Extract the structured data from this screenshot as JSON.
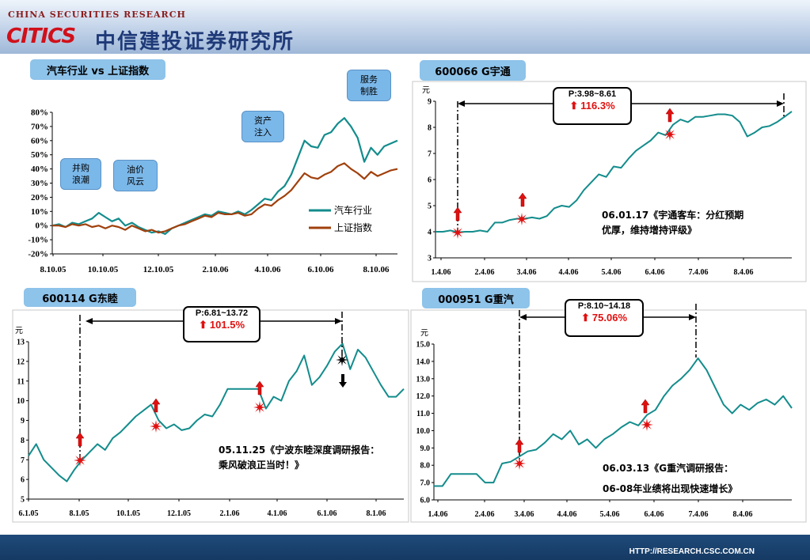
{
  "header": {
    "brand_en": "CHINA SECURITIES RESEARCH",
    "brand_logo": "CITICS",
    "brand_cn": "中信建投证券研究所"
  },
  "footer": {
    "url": "HTTP://RESEARCH.CSC.COM.CN"
  },
  "panels": {
    "p1": {
      "title": "汽车行业 vs 上证指数",
      "bubbles": [
        [
          "并购",
          "浪潮"
        ],
        [
          "油价",
          "风云"
        ],
        [
          "资产",
          "注入"
        ],
        [
          "服务",
          "制胜"
        ]
      ],
      "legend": [
        "汽车行业",
        "上证指数"
      ]
    },
    "p2": {
      "title": "600066  G宇通",
      "unit": "元",
      "box_p": "P:3.98~8.61",
      "box_pct": "116.3%",
      "note": [
        "06.01.17《宇通客车：分红预期",
        "优厚，维持增持评级》"
      ]
    },
    "p3": {
      "title": "600114  G东睦",
      "unit": "元",
      "box_p": "P:6.81~13.72",
      "box_pct": "101.5%",
      "note": [
        "05.11.25《宁波东睦深度调研报告：",
        "乘风破浪正当时！》"
      ]
    },
    "p4": {
      "title": "000951  G重汽",
      "unit": "元",
      "box_p": "P:8.10~14.18",
      "box_pct": "75.06%",
      "note": [
        "06.03.13《G重汽调研报告：",
        "06-08年业绩将出现快速增长》"
      ]
    }
  },
  "chart_data": [
    {
      "type": "line",
      "title": "汽车行业 vs 上证指数",
      "x_ticks": [
        "8.10.05",
        "10.10.05",
        "12.10.05",
        "2.10.06",
        "4.10.06",
        "6.10.06",
        "8.10.06"
      ],
      "y_ticks": [
        "80%",
        "70%",
        "60%",
        "50%",
        "40%",
        "30%",
        "20%",
        "10%",
        "0%",
        "-10%",
        "-20%"
      ],
      "ylim": [
        -20,
        80
      ],
      "legend_position": "center-right",
      "series": [
        {
          "name": "汽车行业",
          "color": "#138c8c",
          "values": [
            0,
            1,
            -1,
            2,
            1,
            3,
            5,
            9,
            6,
            3,
            5,
            0,
            2,
            -1,
            -3,
            -5,
            -4,
            -6,
            -2,
            0,
            2,
            4,
            6,
            8,
            7,
            10,
            9,
            8,
            10,
            8,
            11,
            15,
            19,
            18,
            24,
            28,
            36,
            48,
            60,
            56,
            55,
            64,
            66,
            72,
            76,
            70,
            62,
            45,
            55,
            50,
            56,
            58,
            60
          ]
        },
        {
          "name": "上证指数",
          "color": "#a0400c",
          "values": [
            0,
            0,
            -1,
            1,
            0,
            1,
            -1,
            0,
            -2,
            0,
            -1,
            -3,
            0,
            -2,
            -4,
            -3,
            -5,
            -4,
            -2,
            0,
            1,
            3,
            5,
            7,
            6,
            9,
            8,
            8,
            9,
            7,
            8,
            12,
            15,
            14,
            18,
            21,
            25,
            31,
            37,
            34,
            33,
            36,
            38,
            42,
            44,
            40,
            37,
            33,
            38,
            35,
            37,
            39,
            40
          ]
        }
      ]
    },
    {
      "type": "line",
      "title": "600066  G宇通",
      "ylabel": "元",
      "x_ticks": [
        "1.4.06",
        "2.4.06",
        "3.4.06",
        "4.4.06",
        "5.4.06",
        "6.4.06",
        "7.4.06",
        "8.4.06"
      ],
      "y_ticks": [
        "9",
        "8",
        "7",
        "6",
        "5",
        "4",
        "3"
      ],
      "ylim": [
        3,
        9
      ],
      "series": [
        {
          "name": "",
          "color": "#138c8c",
          "values": [
            4.0,
            4.0,
            4.05,
            3.98,
            4.0,
            4.0,
            4.05,
            4.0,
            4.35,
            4.35,
            4.45,
            4.5,
            4.5,
            4.55,
            4.5,
            4.6,
            4.9,
            5.0,
            4.95,
            5.2,
            5.6,
            5.9,
            6.2,
            6.1,
            6.5,
            6.45,
            6.8,
            7.1,
            7.3,
            7.5,
            7.8,
            7.7,
            8.1,
            8.3,
            8.2,
            8.4,
            8.4,
            8.45,
            8.5,
            8.5,
            8.45,
            8.2,
            7.65,
            7.8,
            8.0,
            8.05,
            8.2,
            8.4,
            8.61
          ]
        }
      ]
    },
    {
      "type": "line",
      "title": "600114  G东睦",
      "ylabel": "元",
      "x_ticks": [
        "6.1.05",
        "8.1.05",
        "10.1.05",
        "12.1.05",
        "2.1.06",
        "4.1.06",
        "6.1.06",
        "8.1.06"
      ],
      "y_ticks": [
        "13",
        "12",
        "11",
        "10",
        "9",
        "8",
        "7",
        "6",
        "5"
      ],
      "ylim": [
        5,
        13
      ],
      "series": [
        {
          "name": "",
          "color": "#138c8c",
          "values": [
            7.2,
            7.8,
            7.0,
            6.6,
            6.2,
            5.9,
            6.5,
            7.0,
            7.4,
            7.8,
            7.5,
            8.1,
            8.4,
            8.8,
            9.2,
            9.5,
            9.8,
            9.0,
            8.6,
            8.8,
            8.5,
            8.6,
            9.0,
            9.3,
            9.2,
            9.8,
            10.6,
            10.6,
            10.6,
            10.6,
            10.6,
            9.6,
            10.2,
            10.0,
            11.0,
            11.5,
            12.3,
            10.8,
            11.2,
            11.8,
            12.5,
            12.9,
            11.6,
            12.6,
            12.2,
            11.5,
            10.8,
            10.2,
            10.2,
            10.6
          ]
        }
      ]
    },
    {
      "type": "line",
      "title": "000951  G重汽",
      "ylabel": "元",
      "x_ticks": [
        "1.4.06",
        "2.4.06",
        "3.4.06",
        "4.4.06",
        "5.4.06",
        "6.4.06",
        "7.4.06",
        "8.4.06"
      ],
      "y_ticks": [
        "15.0",
        "14.0",
        "13.0",
        "12.0",
        "11.0",
        "10.0",
        "9.0",
        "8.0",
        "7.0",
        "6.0"
      ],
      "ylim": [
        6,
        15
      ],
      "series": [
        {
          "name": "",
          "color": "#138c8c",
          "values": [
            6.8,
            6.8,
            7.5,
            7.5,
            7.5,
            7.5,
            7.0,
            7.0,
            8.1,
            8.2,
            8.5,
            8.8,
            8.9,
            9.3,
            9.8,
            9.5,
            10.0,
            9.2,
            9.5,
            9.0,
            9.5,
            9.8,
            10.2,
            10.5,
            10.3,
            10.9,
            11.2,
            12.0,
            12.6,
            13.0,
            13.5,
            14.18,
            13.5,
            12.5,
            11.5,
            11.0,
            11.5,
            11.2,
            11.6,
            11.8,
            11.5,
            12.0,
            11.3
          ]
        }
      ]
    }
  ]
}
